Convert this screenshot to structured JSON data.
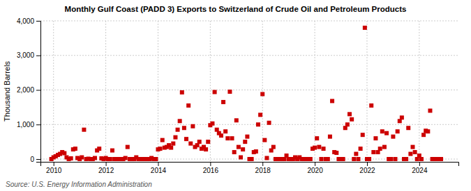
{
  "chart_data": {
    "type": "scatter",
    "title": "Monthly Gulf Coast (PADD 3) Exports to Switzerland of Crude Oil and Petroleum Products",
    "ylabel": "Thousand Barrels",
    "annotations": [
      "Source: U.S. Energy Information Administration"
    ],
    "color": "#cc0000",
    "marker": "square",
    "grid": true,
    "xlim": [
      2009.5,
      2025.5
    ],
    "xticks": [
      2010,
      2012,
      2014,
      2016,
      2018,
      2020,
      2022,
      2024
    ],
    "ylim": [
      -80,
      4000
    ],
    "yticks": [
      0,
      {
        "value": 1000,
        "label": "1,000"
      },
      {
        "value": 2000,
        "label": "2,000"
      },
      {
        "value": 3000,
        "label": "3,000"
      },
      {
        "value": 4000,
        "label": "4,000"
      }
    ],
    "x": [
      2009.917,
      2010.0,
      2010.083,
      2010.167,
      2010.25,
      2010.333,
      2010.417,
      2010.5,
      2010.583,
      2010.667,
      2010.75,
      2010.833,
      2010.917,
      2011.0,
      2011.083,
      2011.167,
      2011.25,
      2011.333,
      2011.417,
      2011.5,
      2011.583,
      2011.667,
      2011.75,
      2011.833,
      2011.917,
      2012.0,
      2012.083,
      2012.167,
      2012.25,
      2012.333,
      2012.417,
      2012.5,
      2012.583,
      2012.667,
      2012.75,
      2012.833,
      2012.917,
      2013.0,
      2013.083,
      2013.167,
      2013.25,
      2013.333,
      2013.417,
      2013.5,
      2013.583,
      2013.667,
      2013.75,
      2013.833,
      2013.917,
      2014.0,
      2014.083,
      2014.167,
      2014.25,
      2014.333,
      2014.417,
      2014.5,
      2014.583,
      2014.667,
      2014.75,
      2014.833,
      2014.917,
      2015.0,
      2015.083,
      2015.167,
      2015.25,
      2015.333,
      2015.417,
      2015.5,
      2015.583,
      2015.667,
      2015.75,
      2015.833,
      2015.917,
      2016.0,
      2016.083,
      2016.167,
      2016.25,
      2016.333,
      2016.417,
      2016.5,
      2016.583,
      2016.667,
      2016.75,
      2016.833,
      2016.917,
      2017.0,
      2017.083,
      2017.167,
      2017.25,
      2017.333,
      2017.417,
      2017.5,
      2017.583,
      2017.667,
      2017.75,
      2017.833,
      2017.917,
      2018.0,
      2018.083,
      2018.167,
      2018.25,
      2018.333,
      2018.417,
      2018.5,
      2018.583,
      2018.667,
      2018.75,
      2018.833,
      2018.917,
      2019.0,
      2019.083,
      2019.167,
      2019.25,
      2019.333,
      2019.417,
      2019.5,
      2019.583,
      2019.667,
      2019.75,
      2019.833,
      2019.917,
      2020.0,
      2020.083,
      2020.167,
      2020.25,
      2020.333,
      2020.417,
      2020.5,
      2020.583,
      2020.667,
      2020.75,
      2020.833,
      2020.917,
      2021.0,
      2021.083,
      2021.167,
      2021.25,
      2021.333,
      2021.417,
      2021.5,
      2021.583,
      2021.667,
      2021.75,
      2021.833,
      2021.917,
      2022.0,
      2022.083,
      2022.167,
      2022.25,
      2022.333,
      2022.417,
      2022.5,
      2022.583,
      2022.667,
      2022.75,
      2022.833,
      2022.917,
      2023.0,
      2023.083,
      2023.167,
      2023.25,
      2023.333,
      2023.417,
      2023.5,
      2023.583,
      2023.667,
      2023.75,
      2023.833,
      2023.917,
      2024.0,
      2024.083,
      2024.167,
      2024.25,
      2024.333,
      2024.417,
      2024.5,
      2024.583,
      2024.667,
      2024.75,
      2024.833
    ],
    "values": [
      0,
      50,
      80,
      120,
      150,
      200,
      170,
      50,
      0,
      20,
      280,
      300,
      30,
      0,
      50,
      850,
      0,
      10,
      0,
      0,
      30,
      250,
      300,
      20,
      0,
      30,
      0,
      0,
      250,
      0,
      0,
      0,
      0,
      0,
      30,
      350,
      0,
      0,
      0,
      50,
      0,
      0,
      0,
      0,
      0,
      0,
      30,
      0,
      0,
      280,
      300,
      550,
      330,
      350,
      400,
      330,
      450,
      630,
      850,
      1100,
      1930,
      900,
      580,
      1550,
      450,
      950,
      350,
      400,
      500,
      300,
      350,
      280,
      500,
      980,
      1030,
      1940,
      850,
      750,
      680,
      1650,
      800,
      600,
      1950,
      600,
      200,
      1120,
      350,
      50,
      280,
      500,
      650,
      0,
      0,
      200,
      220,
      1000,
      1280,
      1880,
      550,
      30,
      1050,
      250,
      350,
      0,
      0,
      0,
      0,
      0,
      100,
      0,
      0,
      0,
      50,
      0,
      50,
      0,
      0,
      0,
      0,
      0,
      300,
      330,
      600,
      350,
      0,
      300,
      0,
      0,
      650,
      1680,
      200,
      180,
      0,
      0,
      0,
      900,
      1000,
      1300,
      1150,
      0,
      150,
      0,
      300,
      700,
      3800,
      0,
      0,
      1550,
      200,
      600,
      200,
      300,
      800,
      350,
      750,
      0,
      0,
      650,
      0,
      800,
      1100,
      1200,
      0,
      0,
      900,
      150,
      350,
      200,
      0,
      100,
      0,
      700,
      820,
      800,
      1400,
      0,
      0,
      0,
      0,
      0
    ]
  }
}
